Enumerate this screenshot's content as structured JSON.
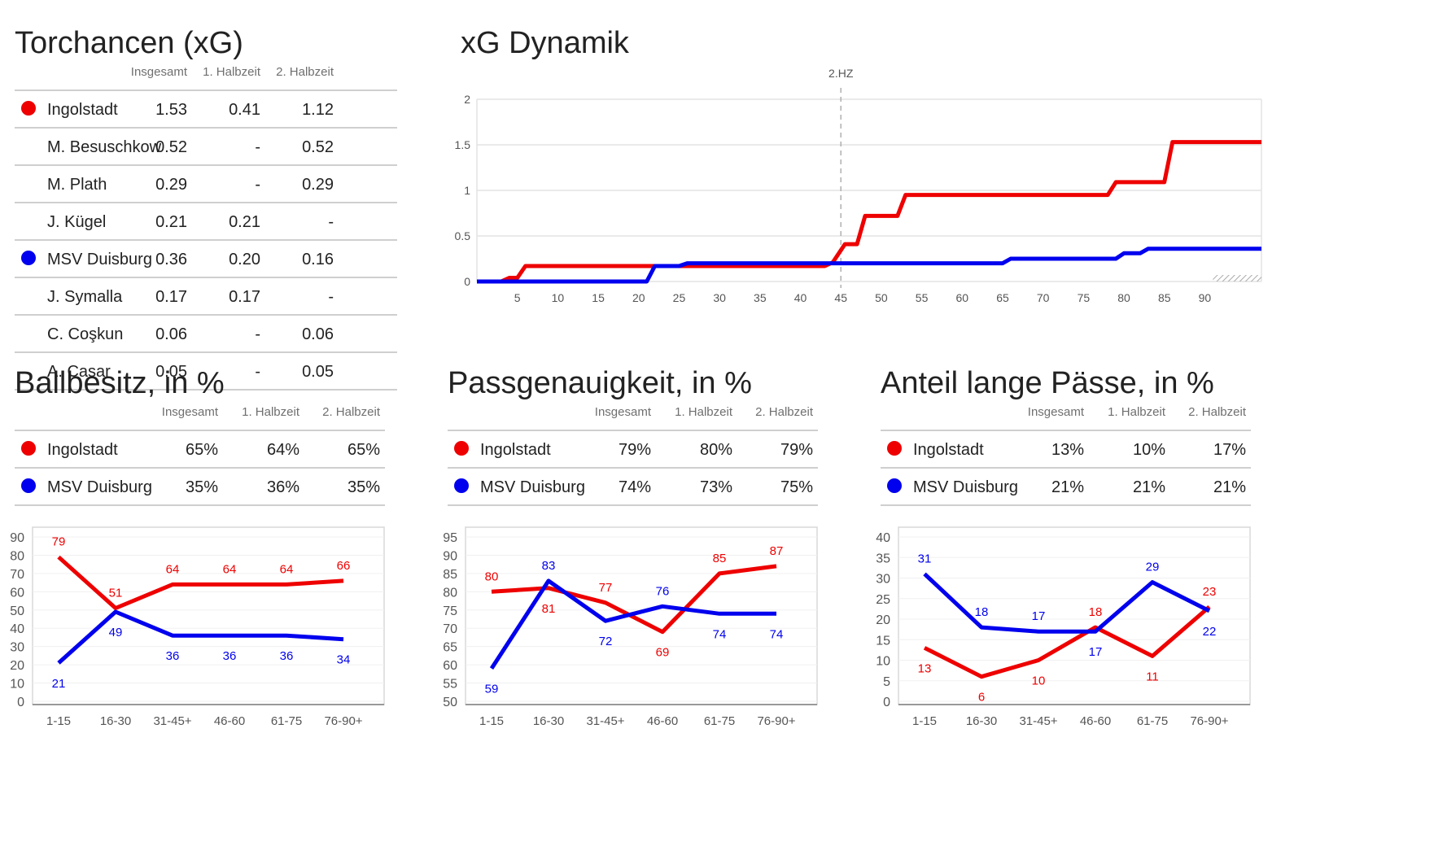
{
  "colors": {
    "home": "#ee0000",
    "away": "#0000ee",
    "grid": "#e3e3e3",
    "axis": "#999999",
    "tick": "#555555"
  },
  "column_headers": [
    "Insgesamt",
    "1. Halbzeit",
    "2. Halbzeit"
  ],
  "xg_table": {
    "title": "Torchancen (xG)",
    "rows": [
      {
        "name": "Ingolstadt",
        "team": "home",
        "total": "1.53",
        "h1": "0.41",
        "h2": "1.12"
      },
      {
        "name": "M. Besuschkow",
        "team": "",
        "total": "0.52",
        "h1": "-",
        "h2": "0.52"
      },
      {
        "name": "M. Plath",
        "team": "",
        "total": "0.29",
        "h1": "-",
        "h2": "0.29"
      },
      {
        "name": "J. Kügel",
        "team": "",
        "total": "0.21",
        "h1": "0.21",
        "h2": "-"
      },
      {
        "name": "MSV Duisburg",
        "team": "away",
        "total": "0.36",
        "h1": "0.20",
        "h2": "0.16"
      },
      {
        "name": "J. Symalla",
        "team": "",
        "total": "0.17",
        "h1": "0.17",
        "h2": "-"
      },
      {
        "name": "C. Coşkun",
        "team": "",
        "total": "0.06",
        "h1": "-",
        "h2": "0.06"
      },
      {
        "name": "A. Casar",
        "team": "",
        "total": "0.05",
        "h1": "-",
        "h2": "0.05"
      }
    ]
  },
  "possession_table": {
    "title": "Ballbesitz, in %",
    "rows": [
      {
        "name": "Ingolstadt",
        "team": "home",
        "total": "65%",
        "h1": "64%",
        "h2": "65%"
      },
      {
        "name": "MSV Duisburg",
        "team": "away",
        "total": "35%",
        "h1": "36%",
        "h2": "35%"
      }
    ]
  },
  "pass_table": {
    "title": "Passgenauigkeit, in %",
    "rows": [
      {
        "name": "Ingolstadt",
        "team": "home",
        "total": "79%",
        "h1": "80%",
        "h2": "79%"
      },
      {
        "name": "MSV Duisburg",
        "team": "away",
        "total": "74%",
        "h1": "73%",
        "h2": "75%"
      }
    ]
  },
  "long_table": {
    "title": "Anteil lange Pässe, in %",
    "rows": [
      {
        "name": "Ingolstadt",
        "team": "home",
        "total": "13%",
        "h1": "10%",
        "h2": "17%"
      },
      {
        "name": "MSV Duisburg",
        "team": "away",
        "total": "21%",
        "h1": "21%",
        "h2": "21%"
      }
    ]
  },
  "chart_data": [
    {
      "id": "xg-dynamic",
      "type": "line",
      "title": "xG Dynamik",
      "marker_label": "2.HZ",
      "marker_x": 45,
      "xlim": [
        0,
        97
      ],
      "ylim": [
        0,
        2
      ],
      "x_ticks": [
        5,
        10,
        15,
        20,
        25,
        30,
        35,
        40,
        45,
        50,
        55,
        60,
        65,
        70,
        75,
        80,
        85,
        90
      ],
      "y_ticks": [
        "0",
        "0.5",
        "1",
        "1.5",
        "2"
      ],
      "series": [
        {
          "team": "home",
          "points": [
            [
              0,
              0
            ],
            [
              3,
              0
            ],
            [
              4,
              0.04
            ],
            [
              5,
              0.04
            ],
            [
              6,
              0.17
            ],
            [
              43,
              0.17
            ],
            [
              44,
              0.21
            ],
            [
              45.5,
              0.41
            ],
            [
              47,
              0.41
            ],
            [
              48,
              0.72
            ],
            [
              52,
              0.72
            ],
            [
              53,
              0.95
            ],
            [
              78,
              0.95
            ],
            [
              79,
              1.09
            ],
            [
              85,
              1.09
            ],
            [
              86,
              1.53
            ],
            [
              97,
              1.53
            ]
          ]
        },
        {
          "team": "away",
          "points": [
            [
              0,
              0
            ],
            [
              21,
              0
            ],
            [
              22,
              0.17
            ],
            [
              25,
              0.17
            ],
            [
              26,
              0.2
            ],
            [
              65,
              0.2
            ],
            [
              66,
              0.25
            ],
            [
              79,
              0.25
            ],
            [
              80,
              0.31
            ],
            [
              82,
              0.31
            ],
            [
              83,
              0.36
            ],
            [
              97,
              0.36
            ]
          ]
        }
      ]
    },
    {
      "id": "possession",
      "type": "line",
      "categories": [
        "1-15",
        "16-30",
        "31-45+",
        "46-60",
        "61-75",
        "76-90+"
      ],
      "ylim": [
        0,
        90
      ],
      "y_ticks": [
        0,
        10,
        20,
        30,
        40,
        50,
        60,
        70,
        80,
        90
      ],
      "series": [
        {
          "team": "home",
          "values": [
            79,
            51,
            64,
            64,
            64,
            66
          ],
          "label_pos": [
            "above",
            "above",
            "above",
            "above",
            "above",
            "above"
          ]
        },
        {
          "team": "away",
          "values": [
            21,
            49,
            36,
            36,
            36,
            34
          ],
          "label_pos": [
            "below",
            "below",
            "below",
            "below",
            "below",
            "below"
          ]
        }
      ]
    },
    {
      "id": "pass-accuracy",
      "type": "line",
      "categories": [
        "1-15",
        "16-30",
        "31-45+",
        "46-60",
        "61-75",
        "76-90+"
      ],
      "ylim": [
        50,
        95
      ],
      "y_ticks": [
        50,
        55,
        60,
        65,
        70,
        75,
        80,
        85,
        90,
        95
      ],
      "series": [
        {
          "team": "home",
          "values": [
            80,
            81,
            77,
            69,
            85,
            87
          ],
          "label_pos": [
            "above",
            "below",
            "above",
            "below",
            "above",
            "above"
          ]
        },
        {
          "team": "away",
          "values": [
            59,
            83,
            72,
            76,
            74,
            74
          ],
          "label_pos": [
            "below",
            "above",
            "below",
            "above",
            "below",
            "below"
          ]
        }
      ]
    },
    {
      "id": "long-passes",
      "type": "line",
      "categories": [
        "1-15",
        "16-30",
        "31-45+",
        "46-60",
        "61-75",
        "76-90+"
      ],
      "ylim": [
        0,
        40
      ],
      "y_ticks": [
        0,
        5,
        10,
        15,
        20,
        25,
        30,
        35,
        40
      ],
      "series": [
        {
          "team": "home",
          "values": [
            13,
            6,
            10,
            18,
            11,
            23
          ],
          "label_pos": [
            "below",
            "below",
            "below",
            "above",
            "below",
            "above"
          ]
        },
        {
          "team": "away",
          "values": [
            31,
            18,
            17,
            17,
            29,
            22
          ],
          "label_pos": [
            "above",
            "above",
            "above",
            "below",
            "above",
            "below"
          ]
        }
      ]
    }
  ]
}
